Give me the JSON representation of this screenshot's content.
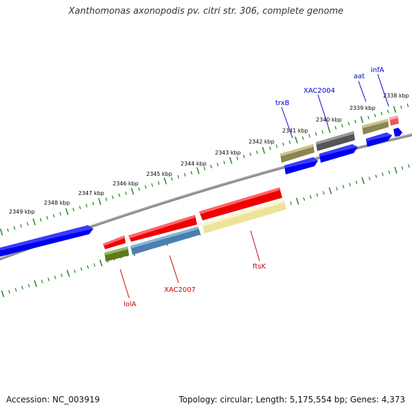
{
  "title": "Xanthomonas axonopodis pv. citri str. 306, complete genome",
  "footer": {
    "accession": "Accession: NC_003919",
    "summary": "Topology: circular; Length: 5,175,554 bp; Genes: 4,373"
  },
  "colors": {
    "background": "#ffffff",
    "backbone": "#8c8c8c",
    "ruler_tick": "#2a8a2a",
    "forward_label": "#0000cc",
    "reverse_label": "#cc0000"
  },
  "ruler": {
    "unit": "kbp",
    "labels": [
      "2338 kbp",
      "2339 kbp",
      "2340 kbp",
      "2341 kbp",
      "2342 kbp",
      "2343 kbp",
      "2344 kbp",
      "2345 kbp",
      "2346 kbp",
      "2347 kbp",
      "2348 kbp",
      "2349 kbp"
    ]
  },
  "features": [
    {
      "name": "infA",
      "strand": "forward",
      "color": "#0000ee",
      "labeled": true
    },
    {
      "name": "aat",
      "strand": "forward",
      "color": "#0000ee",
      "labeled": true
    },
    {
      "name": "XAC2004",
      "strand": "forward",
      "color": "#0000ee",
      "labeled": true
    },
    {
      "name": "trxB",
      "strand": "forward",
      "color": "#0000ee",
      "labeled": true
    },
    {
      "name": "ftsK",
      "strand": "reverse",
      "color": "#ff0000",
      "labeled": true
    },
    {
      "name": "XAC2007",
      "strand": "reverse",
      "color": "#ff0000",
      "labeled": true
    },
    {
      "name": "lolA",
      "strand": "reverse",
      "color": "#ff0000",
      "labeled": true
    }
  ]
}
